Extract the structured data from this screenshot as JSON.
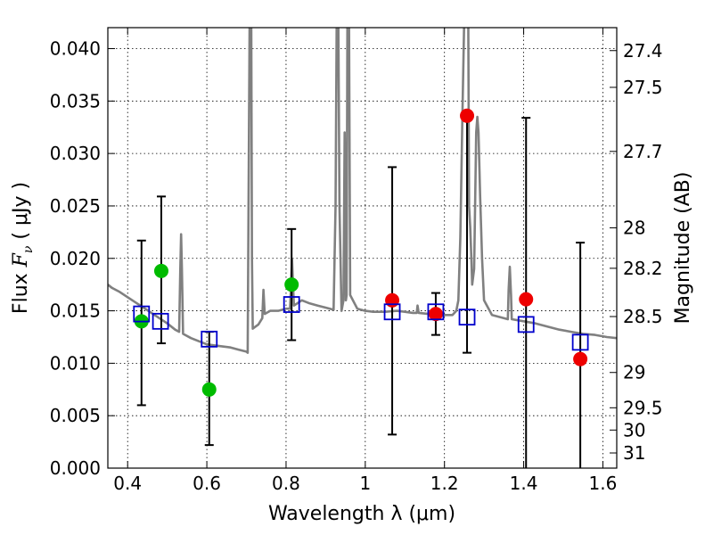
{
  "chart_data": {
    "type": "scatter",
    "xlabel": "Wavelength  λ (μm)",
    "ylabel_text": "Flux  F",
    "ylabel_sub": "ν",
    "ylabel_unit": " ( μJy )",
    "y2label": "Magnitude (AB)",
    "xlim": [
      0.35,
      1.635
    ],
    "ylim": [
      0.0,
      0.042
    ],
    "grid": true,
    "x_ticks": [
      {
        "value": 0.4,
        "label": "0.4"
      },
      {
        "value": 0.6,
        "label": "0.6"
      },
      {
        "value": 0.8,
        "label": "0.8"
      },
      {
        "value": 1.0,
        "label": "1"
      },
      {
        "value": 1.2,
        "label": "1.2"
      },
      {
        "value": 1.4,
        "label": "1.4"
      },
      {
        "value": 1.6,
        "label": "1.6"
      }
    ],
    "y_ticks": [
      {
        "value": 0.0,
        "label": "0.000"
      },
      {
        "value": 0.005,
        "label": "0.005"
      },
      {
        "value": 0.01,
        "label": "0.010"
      },
      {
        "value": 0.015,
        "label": "0.015"
      },
      {
        "value": 0.02,
        "label": "0.020"
      },
      {
        "value": 0.025,
        "label": "0.025"
      },
      {
        "value": 0.03,
        "label": "0.030"
      },
      {
        "value": 0.035,
        "label": "0.035"
      },
      {
        "value": 0.04,
        "label": "0.040"
      }
    ],
    "mag_ticks": [
      {
        "value": 27.4,
        "label": "27.4"
      },
      {
        "value": 27.5,
        "label": "27.5"
      },
      {
        "value": 27.7,
        "label": "27.7"
      },
      {
        "value": 28.0,
        "label": "28"
      },
      {
        "value": 28.2,
        "label": "28.2"
      },
      {
        "value": 28.5,
        "label": "28.5"
      },
      {
        "value": 29.0,
        "label": "29"
      },
      {
        "value": 29.5,
        "label": "29.5"
      },
      {
        "value": 30.0,
        "label": "30"
      },
      {
        "value": 31.0,
        "label": "31"
      }
    ],
    "colors": {
      "sed": "#808080",
      "observed_optical": "#00bb00",
      "observed_nir": "#ee0000",
      "model": "#0000cc",
      "errorbar": "#000000",
      "grid": "#000000"
    },
    "model_sed": [
      [
        0.35,
        0.0175
      ],
      [
        0.36,
        0.0172
      ],
      [
        0.38,
        0.0168
      ],
      [
        0.4,
        0.0163
      ],
      [
        0.42,
        0.0158
      ],
      [
        0.44,
        0.0153
      ],
      [
        0.46,
        0.0148
      ],
      [
        0.48,
        0.0143
      ],
      [
        0.5,
        0.0138
      ],
      [
        0.52,
        0.0132
      ],
      [
        0.53,
        0.013
      ],
      [
        0.533,
        0.019
      ],
      [
        0.535,
        0.0223
      ],
      [
        0.537,
        0.019
      ],
      [
        0.54,
        0.0128
      ],
      [
        0.56,
        0.0124
      ],
      [
        0.58,
        0.0121
      ],
      [
        0.6,
        0.0118
      ],
      [
        0.62,
        0.0117
      ],
      [
        0.64,
        0.0116
      ],
      [
        0.66,
        0.0115
      ],
      [
        0.68,
        0.0113
      ],
      [
        0.7,
        0.0111
      ],
      [
        0.703,
        0.011
      ],
      [
        0.706,
        0.03
      ],
      [
        0.708,
        0.043
      ],
      [
        0.712,
        0.043
      ],
      [
        0.714,
        0.02
      ],
      [
        0.716,
        0.0133
      ],
      [
        0.73,
        0.0137
      ],
      [
        0.74,
        0.0143
      ],
      [
        0.743,
        0.017
      ],
      [
        0.746,
        0.0147
      ],
      [
        0.76,
        0.015
      ],
      [
        0.78,
        0.015
      ],
      [
        0.8,
        0.0152
      ],
      [
        0.81,
        0.0152
      ],
      [
        0.812,
        0.017
      ],
      [
        0.815,
        0.02
      ],
      [
        0.818,
        0.017
      ],
      [
        0.82,
        0.0155
      ],
      [
        0.84,
        0.016
      ],
      [
        0.86,
        0.0157
      ],
      [
        0.88,
        0.0155
      ],
      [
        0.9,
        0.0153
      ],
      [
        0.92,
        0.0151
      ],
      [
        0.925,
        0.025
      ],
      [
        0.928,
        0.043
      ],
      [
        0.932,
        0.043
      ],
      [
        0.935,
        0.025
      ],
      [
        0.94,
        0.015
      ],
      [
        0.945,
        0.016
      ],
      [
        0.948,
        0.032
      ],
      [
        0.951,
        0.016
      ],
      [
        0.953,
        0.0165
      ],
      [
        0.955,
        0.043
      ],
      [
        0.959,
        0.043
      ],
      [
        0.962,
        0.0165
      ],
      [
        0.98,
        0.0152
      ],
      [
        1.0,
        0.015
      ],
      [
        1.02,
        0.0149
      ],
      [
        1.05,
        0.0149
      ],
      [
        1.08,
        0.015
      ],
      [
        1.1,
        0.0149
      ],
      [
        1.12,
        0.0148
      ],
      [
        1.13,
        0.0148
      ],
      [
        1.132,
        0.0155
      ],
      [
        1.135,
        0.0148
      ],
      [
        1.16,
        0.0147
      ],
      [
        1.18,
        0.0147
      ],
      [
        1.2,
        0.0146
      ],
      [
        1.22,
        0.0146
      ],
      [
        1.23,
        0.015
      ],
      [
        1.235,
        0.016
      ],
      [
        1.24,
        0.022
      ],
      [
        1.245,
        0.033
      ],
      [
        1.25,
        0.043
      ],
      [
        1.255,
        0.043
      ],
      [
        1.26,
        0.043
      ],
      [
        1.262,
        0.025
      ],
      [
        1.265,
        0.023
      ],
      [
        1.268,
        0.02
      ],
      [
        1.27,
        0.0175
      ],
      [
        1.275,
        0.019
      ],
      [
        1.28,
        0.032
      ],
      [
        1.283,
        0.0335
      ],
      [
        1.286,
        0.032
      ],
      [
        1.29,
        0.026
      ],
      [
        1.295,
        0.02
      ],
      [
        1.3,
        0.016
      ],
      [
        1.32,
        0.0146
      ],
      [
        1.34,
        0.0144
      ],
      [
        1.36,
        0.0142
      ],
      [
        1.362,
        0.017
      ],
      [
        1.365,
        0.0192
      ],
      [
        1.368,
        0.0165
      ],
      [
        1.37,
        0.0142
      ],
      [
        1.4,
        0.014
      ],
      [
        1.43,
        0.0138
      ],
      [
        1.46,
        0.0135
      ],
      [
        1.49,
        0.0132
      ],
      [
        1.52,
        0.013
      ],
      [
        1.55,
        0.0128
      ],
      [
        1.58,
        0.0127
      ],
      [
        1.61,
        0.0125
      ],
      [
        1.635,
        0.0124
      ]
    ],
    "observed": [
      {
        "x": 0.435,
        "y": 0.014,
        "band": "optical",
        "err_lo": 0.006,
        "err_hi": 0.0217
      },
      {
        "x": 0.485,
        "y": 0.0188,
        "band": "optical",
        "err_lo": 0.0119,
        "err_hi": 0.0259
      },
      {
        "x": 0.606,
        "y": 0.0075,
        "band": "optical",
        "err_lo": 0.0022,
        "err_hi": 0.013
      },
      {
        "x": 0.814,
        "y": 0.0175,
        "band": "optical",
        "err_lo": 0.0122,
        "err_hi": 0.0228
      },
      {
        "x": 1.068,
        "y": 0.016,
        "band": "nir",
        "err_lo": 0.0032,
        "err_hi": 0.0287
      },
      {
        "x": 1.178,
        "y": 0.0147,
        "band": "nir",
        "err_lo": 0.0127,
        "err_hi": 0.0167
      },
      {
        "x": 1.257,
        "y": 0.0336,
        "band": "nir",
        "err_lo": 0.011,
        "err_hi": 0.0336
      },
      {
        "x": 1.406,
        "y": 0.0161,
        "band": "nir",
        "err_lo": -0.0012,
        "err_hi": 0.0334
      },
      {
        "x": 1.543,
        "y": 0.0104,
        "band": "nir",
        "err_lo": -0.0007,
        "err_hi": 0.0215
      }
    ],
    "model_photometry": [
      {
        "x": 0.435,
        "y": 0.0147
      },
      {
        "x": 0.483,
        "y": 0.014
      },
      {
        "x": 0.606,
        "y": 0.0123
      },
      {
        "x": 0.814,
        "y": 0.0156
      },
      {
        "x": 1.068,
        "y": 0.0149
      },
      {
        "x": 1.178,
        "y": 0.0149
      },
      {
        "x": 1.257,
        "y": 0.0144
      },
      {
        "x": 1.406,
        "y": 0.0137
      },
      {
        "x": 1.543,
        "y": 0.012
      }
    ]
  }
}
